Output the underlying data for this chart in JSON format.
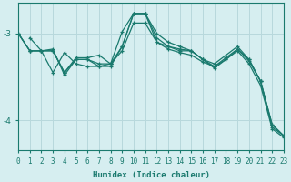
{
  "xlabel": "Humidex (Indice chaleur)",
  "background_color": "#d6eef0",
  "grid_color": "#b8d8dc",
  "line_color": "#1a7a6e",
  "x_min": 0,
  "x_max": 23,
  "y_min": -4.35,
  "y_max": -2.65,
  "yticks": [
    -4,
    -3
  ],
  "series": [
    [
      null,
      -3.05,
      -3.2,
      -3.2,
      -3.45,
      -3.3,
      -3.3,
      -3.35,
      -3.35,
      -2.98,
      -2.77,
      -2.77,
      -3.05,
      -3.15,
      -3.2,
      -3.2,
      -3.3,
      -3.4,
      -3.3,
      -3.2,
      -3.35,
      -3.6,
      -4.1,
      -4.2
    ],
    [
      -3.0,
      -3.2,
      -3.2,
      -3.2,
      -3.45,
      -3.28,
      -3.28,
      -3.25,
      -3.35,
      -3.2,
      -2.88,
      -2.88,
      -3.1,
      -3.15,
      -3.18,
      -3.2,
      -3.3,
      -3.35,
      -3.25,
      -3.15,
      -3.3,
      -3.55,
      -4.05,
      -4.18
    ],
    [
      -3.0,
      -3.2,
      -3.2,
      -3.18,
      -3.48,
      -3.3,
      -3.3,
      -3.38,
      -3.38,
      -3.15,
      -2.77,
      -2.77,
      -3.0,
      -3.1,
      -3.15,
      -3.2,
      -3.3,
      -3.38,
      -3.3,
      -3.18,
      -3.3,
      -3.55,
      -4.08,
      -4.18
    ],
    [
      -3.0,
      -3.2,
      -3.2,
      -3.45,
      -3.22,
      -3.35,
      -3.38,
      -3.38,
      -3.35,
      -3.15,
      -2.77,
      -2.77,
      -3.1,
      -3.18,
      -3.22,
      -3.25,
      -3.33,
      -3.38,
      -3.28,
      -3.18,
      -3.32,
      -3.55,
      -4.05,
      -4.18
    ]
  ]
}
